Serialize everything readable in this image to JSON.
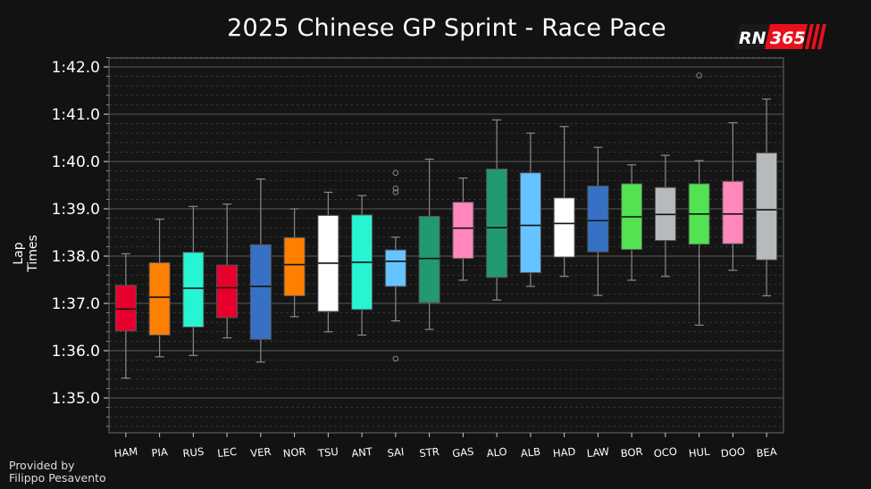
{
  "brand": {
    "logo_text": "RN",
    "logo_number": "365",
    "accent": "#e8101c"
  },
  "credit": {
    "line1": "Provided by",
    "line2": "Filippo Pesavento"
  },
  "chart_data": {
    "type": "box",
    "title": "2025 Chinese GP Sprint - Race Pace",
    "xlabel": "",
    "ylabel": "Lap Times",
    "y_unit": "seconds (lap time)",
    "ylim": [
      94.3,
      102.2
    ],
    "y_ticks": [
      95,
      96,
      97,
      98,
      99,
      100,
      101,
      102
    ],
    "y_tick_labels": [
      "1:35.0",
      "1:36.0",
      "1:37.0",
      "1:38.0",
      "1:39.0",
      "1:40.0",
      "1:41.0",
      "1:42.0"
    ],
    "grid": true,
    "boxes": [
      {
        "driver": "HAM",
        "color": "#e8002d",
        "whisker_low": 95.42,
        "q1": 96.42,
        "median": 96.88,
        "q3": 97.38,
        "whisker_high": 98.05,
        "outliers": []
      },
      {
        "driver": "PIA",
        "color": "#ff8000",
        "whisker_low": 95.87,
        "q1": 96.33,
        "median": 97.13,
        "q3": 97.86,
        "whisker_high": 98.78,
        "outliers": []
      },
      {
        "driver": "RUS",
        "color": "#27f4d2",
        "whisker_low": 95.9,
        "q1": 96.5,
        "median": 97.32,
        "q3": 98.08,
        "whisker_high": 99.05,
        "outliers": []
      },
      {
        "driver": "LEC",
        "color": "#e8002d",
        "whisker_low": 96.27,
        "q1": 96.7,
        "median": 97.33,
        "q3": 97.81,
        "whisker_high": 99.1,
        "outliers": []
      },
      {
        "driver": "VER",
        "color": "#3671c6",
        "whisker_low": 95.76,
        "q1": 96.24,
        "median": 97.36,
        "q3": 98.24,
        "whisker_high": 99.63,
        "outliers": []
      },
      {
        "driver": "NOR",
        "color": "#ff8000",
        "whisker_low": 96.72,
        "q1": 97.16,
        "median": 97.82,
        "q3": 98.39,
        "whisker_high": 99.0,
        "outliers": []
      },
      {
        "driver": "TSU",
        "color": "#ffffff",
        "whisker_low": 96.4,
        "q1": 96.83,
        "median": 97.85,
        "q3": 98.86,
        "whisker_high": 99.35,
        "outliers": []
      },
      {
        "driver": "ANT",
        "color": "#27f4d2",
        "whisker_low": 96.33,
        "q1": 96.87,
        "median": 97.87,
        "q3": 98.87,
        "whisker_high": 99.28,
        "outliers": []
      },
      {
        "driver": "SAI",
        "color": "#64c4ff",
        "whisker_low": 96.63,
        "q1": 97.36,
        "median": 97.89,
        "q3": 98.13,
        "whisker_high": 98.4,
        "outliers": [
          95.83,
          99.35,
          99.43,
          99.76
        ]
      },
      {
        "driver": "STR",
        "color": "#229971",
        "whisker_low": 96.45,
        "q1": 97.02,
        "median": 97.95,
        "q3": 98.84,
        "whisker_high": 100.05,
        "outliers": []
      },
      {
        "driver": "GAS",
        "color": "#ff87bc",
        "whisker_low": 97.49,
        "q1": 97.95,
        "median": 98.59,
        "q3": 99.14,
        "whisker_high": 99.65,
        "outliers": []
      },
      {
        "driver": "ALO",
        "color": "#229971",
        "whisker_low": 97.07,
        "q1": 97.55,
        "median": 98.6,
        "q3": 99.84,
        "whisker_high": 100.88,
        "outliers": []
      },
      {
        "driver": "ALB",
        "color": "#64c4ff",
        "whisker_low": 97.36,
        "q1": 97.65,
        "median": 98.65,
        "q3": 99.76,
        "whisker_high": 100.6,
        "outliers": []
      },
      {
        "driver": "HAD",
        "color": "#ffffff",
        "whisker_low": 97.57,
        "q1": 97.98,
        "median": 98.69,
        "q3": 99.23,
        "whisker_high": 100.74,
        "outliers": []
      },
      {
        "driver": "LAW",
        "color": "#3671c6",
        "whisker_low": 97.17,
        "q1": 98.09,
        "median": 98.75,
        "q3": 99.48,
        "whisker_high": 100.3,
        "outliers": []
      },
      {
        "driver": "BOR",
        "color": "#52e252",
        "whisker_low": 97.49,
        "q1": 98.14,
        "median": 98.83,
        "q3": 99.53,
        "whisker_high": 99.93,
        "outliers": []
      },
      {
        "driver": "OCO",
        "color": "#b6babd",
        "whisker_low": 97.57,
        "q1": 98.33,
        "median": 98.88,
        "q3": 99.45,
        "whisker_high": 100.13,
        "outliers": []
      },
      {
        "driver": "HUL",
        "color": "#52e252",
        "whisker_low": 96.54,
        "q1": 98.25,
        "median": 98.89,
        "q3": 99.53,
        "whisker_high": 100.02,
        "outliers": [
          101.82
        ]
      },
      {
        "driver": "DOO",
        "color": "#ff87bc",
        "whisker_low": 97.7,
        "q1": 98.26,
        "median": 98.89,
        "q3": 99.58,
        "whisker_high": 100.82,
        "outliers": []
      },
      {
        "driver": "BEA",
        "color": "#b6babd",
        "whisker_low": 97.16,
        "q1": 97.92,
        "median": 98.98,
        "q3": 100.18,
        "whisker_high": 101.32,
        "outliers": []
      }
    ]
  }
}
